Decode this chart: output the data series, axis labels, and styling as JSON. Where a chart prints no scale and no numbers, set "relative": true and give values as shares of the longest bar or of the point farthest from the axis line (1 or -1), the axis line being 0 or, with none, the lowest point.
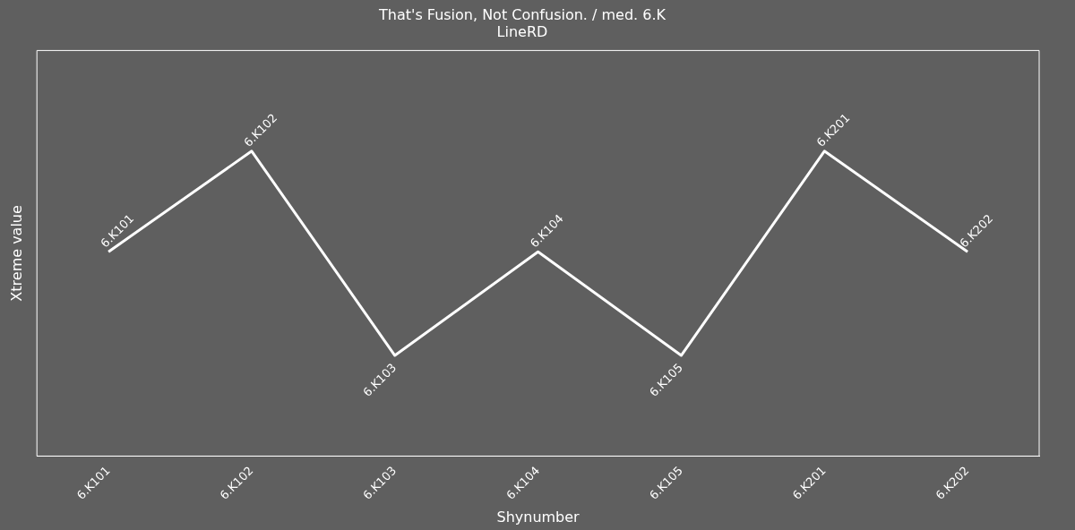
{
  "chart_data": {
    "type": "line",
    "title": "That's Fusion, Not Confusion. / med. 6.K",
    "subtitle": "LineRD",
    "xlabel": "Shynumber",
    "ylabel": "Xtreme value",
    "relative": true,
    "categories": [
      "6.K101",
      "6.K102",
      "6.K103",
      "6.K104",
      "6.K105",
      "6.K201",
      "6.K202"
    ],
    "series": [
      {
        "color": "#ffffff",
        "values": [
          0.67,
          1,
          0.33,
          0.67,
          0.33,
          1,
          0.67
        ]
      }
    ],
    "annotations": [
      {
        "text": "6.K101",
        "x": "6.K101",
        "y": 0.67
      },
      {
        "text": "6.K102",
        "x": "6.K102",
        "y": 1
      },
      {
        "text": "6.K103",
        "x": "6.K103",
        "y": 0.33
      },
      {
        "text": "6.K104",
        "x": "6.K104",
        "y": 0.67
      },
      {
        "text": "6.K105",
        "x": "6.K105",
        "y": 0.33
      },
      {
        "text": "6.K201",
        "x": "6.K201",
        "y": 1
      },
      {
        "text": "6.K202",
        "x": "6.K202",
        "y": 0.67
      }
    ],
    "grid": false,
    "legend": false,
    "marker": "none",
    "line_style": "solid",
    "tick_labels": "x"
  }
}
